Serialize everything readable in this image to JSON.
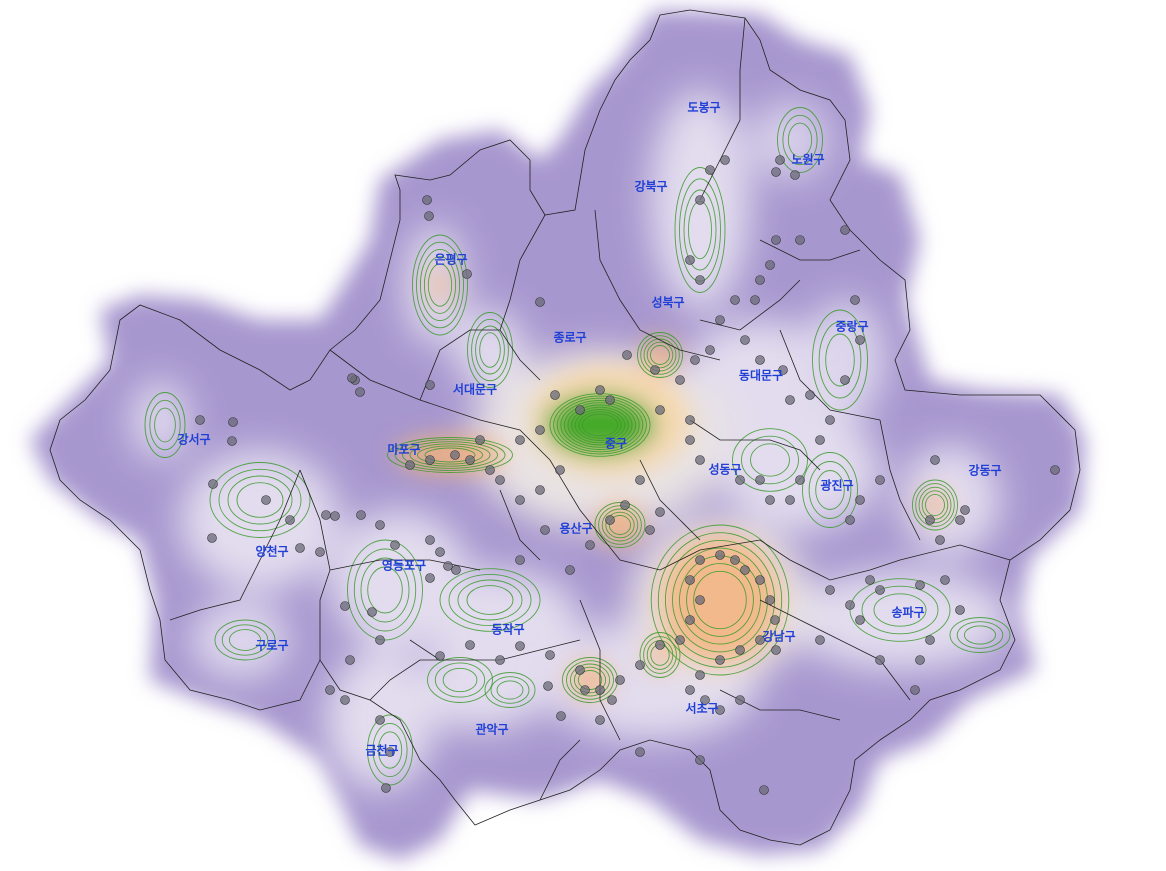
{
  "map": {
    "colors": {
      "density_low": "#a797cf",
      "density_mid": "#e9e4f2",
      "density_high": "#f3b37c",
      "density_peak": "#38a81f",
      "contour": "#3a9a2a",
      "point": "#6b6a78",
      "label": "#1f3fd6",
      "boundary": "#222222"
    },
    "districts": [
      {
        "id": "dobong",
        "label": "도봉구"
      },
      {
        "id": "nowon",
        "label": "노원구"
      },
      {
        "id": "gangbuk",
        "label": "강북구"
      },
      {
        "id": "eunpyeong",
        "label": "은평구"
      },
      {
        "id": "seongbuk",
        "label": "성북구"
      },
      {
        "id": "jungnang",
        "label": "중랑구"
      },
      {
        "id": "jongno",
        "label": "종로구"
      },
      {
        "id": "seodaemun",
        "label": "서대문구"
      },
      {
        "id": "dongdaemun",
        "label": "동대문구"
      },
      {
        "id": "gangseo",
        "label": "강서구"
      },
      {
        "id": "mapo",
        "label": "마포구"
      },
      {
        "id": "jung",
        "label": "중구"
      },
      {
        "id": "seongdong",
        "label": "성동구"
      },
      {
        "id": "gwangjin",
        "label": "광진구"
      },
      {
        "id": "gangdong",
        "label": "강동구"
      },
      {
        "id": "yongsan",
        "label": "용산구"
      },
      {
        "id": "yangcheon",
        "label": "양천구"
      },
      {
        "id": "yeongdeungpo",
        "label": "영등포구"
      },
      {
        "id": "dongjak",
        "label": "동작구"
      },
      {
        "id": "songpa",
        "label": "송파구"
      },
      {
        "id": "gangnam",
        "label": "강남구"
      },
      {
        "id": "guro",
        "label": "구로구"
      },
      {
        "id": "seocho",
        "label": "서초구"
      },
      {
        "id": "gwanak",
        "label": "관악구"
      },
      {
        "id": "geumcheon",
        "label": "금천구"
      }
    ]
  }
}
